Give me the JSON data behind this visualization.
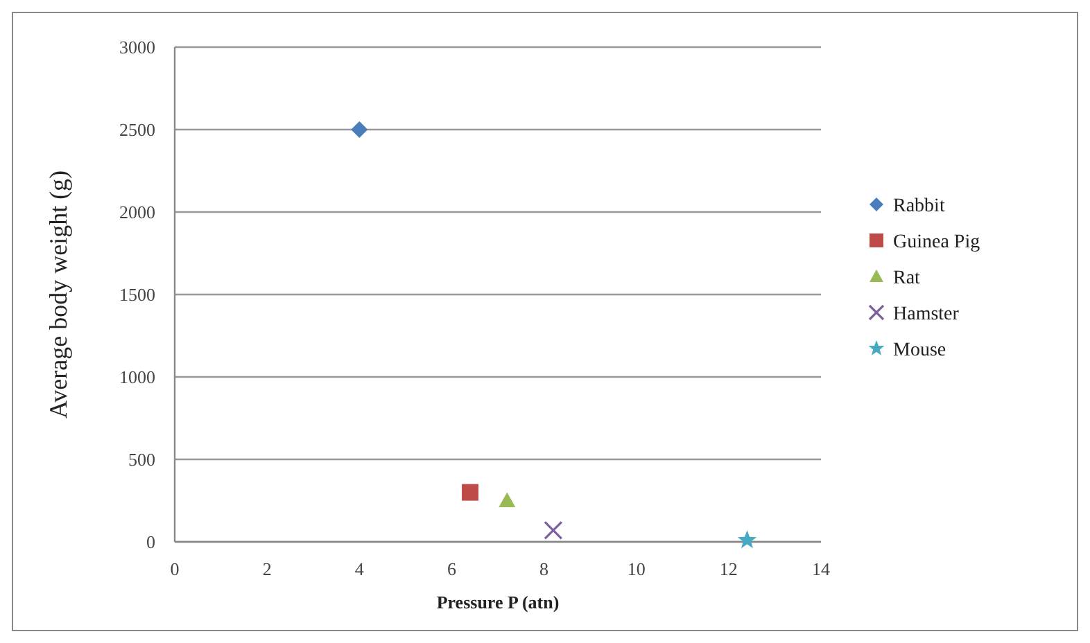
{
  "chart_data": {
    "type": "scatter",
    "xlabel": "Pressure  P (atn)",
    "ylabel": "Average body weight (g)",
    "xlim": [
      0,
      14
    ],
    "xticks": [
      0,
      2,
      4,
      6,
      8,
      10,
      12,
      14
    ],
    "ylim": [
      0,
      3000
    ],
    "yticks": [
      0,
      500,
      1000,
      1500,
      2000,
      2500,
      3000
    ],
    "grid": "y",
    "legend": "right",
    "series": [
      {
        "name": "Rabbit",
        "color": "#4a7ebb",
        "marker": "diamond",
        "x": [
          4
        ],
        "values": [
          2500
        ]
      },
      {
        "name": "Guinea Pig",
        "color": "#be4b48",
        "marker": "square",
        "x": [
          6.4
        ],
        "values": [
          300
        ]
      },
      {
        "name": "Rat",
        "color": "#98b954",
        "marker": "triangle",
        "x": [
          7.2
        ],
        "values": [
          250
        ]
      },
      {
        "name": "Hamster",
        "color": "#7d60a0",
        "marker": "cross",
        "x": [
          8.2
        ],
        "values": [
          70
        ]
      },
      {
        "name": "Mouse",
        "color": "#46aac5",
        "marker": "star",
        "x": [
          12.4
        ],
        "values": [
          10
        ]
      }
    ]
  }
}
